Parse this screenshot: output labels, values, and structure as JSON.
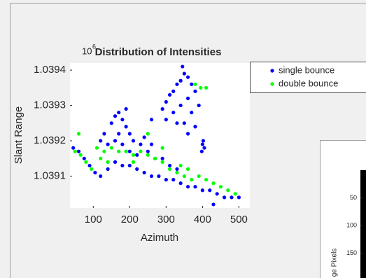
{
  "chart_data": [
    {
      "type": "scatter",
      "title": "Distribution of Intensities",
      "xlabel": "Azimuth",
      "ylabel": "Slant Range",
      "y_multiplier": {
        "base": "10",
        "power": "6"
      },
      "xlim": [
        36,
        530
      ],
      "ylim": [
        1.03901,
        1.03942
      ],
      "xticks": [
        100,
        200,
        300,
        400,
        500
      ],
      "yticks": [
        1.0391,
        1.0392,
        1.0393,
        1.0394
      ],
      "legend": "outside-right",
      "series": [
        {
          "name": "single bounce",
          "color": "#0000ff",
          "x": [
            45,
            60,
            75,
            90,
            105,
            120,
            140,
            160,
            180,
            200,
            220,
            240,
            260,
            280,
            300,
            320,
            340,
            360,
            380,
            400,
            420,
            440,
            460,
            480,
            500,
            430,
            150,
            160,
            170,
            180,
            170,
            190,
            200,
            210,
            180,
            160,
            140,
            230,
            250,
            220,
            200,
            270,
            290,
            240,
            260,
            310,
            330,
            130,
            190,
            120,
            290,
            300,
            310,
            320,
            330,
            340,
            350,
            345,
            360,
            370,
            380,
            320,
            340,
            360,
            370,
            350,
            360,
            380,
            300,
            330,
            390,
            260,
            400,
            405,
            398,
            402
          ],
          "y": [
            1.03918,
            1.03917,
            1.03915,
            1.03913,
            1.03911,
            1.0391,
            1.03912,
            1.03914,
            1.03913,
            1.03913,
            1.03912,
            1.03911,
            1.0391,
            1.0391,
            1.03909,
            1.03909,
            1.03908,
            1.03907,
            1.03907,
            1.03906,
            1.03906,
            1.03905,
            1.03904,
            1.03904,
            1.03904,
            1.03902,
            1.03925,
            1.03927,
            1.03928,
            1.03926,
            1.03922,
            1.03924,
            1.03922,
            1.0392,
            1.03919,
            1.0392,
            1.03919,
            1.03919,
            1.03917,
            1.03916,
            1.03917,
            1.03915,
            1.03915,
            1.03921,
            1.03919,
            1.03913,
            1.03912,
            1.03922,
            1.03929,
            1.0392,
            1.03929,
            1.03931,
            1.03933,
            1.03934,
            1.03936,
            1.03937,
            1.03939,
            1.03941,
            1.03938,
            1.03936,
            1.03934,
            1.03928,
            1.0393,
            1.03932,
            1.03928,
            1.03925,
            1.03922,
            1.03924,
            1.03926,
            1.03925,
            1.0393,
            1.03926,
            1.03919,
            1.03918,
            1.03917,
            1.0392
          ]
        },
        {
          "name": "double bounce",
          "color": "#00ff00",
          "x": [
            50,
            65,
            80,
            95,
            60,
            110,
            130,
            150,
            170,
            190,
            210,
            230,
            250,
            270,
            120,
            140,
            210,
            290,
            310,
            330,
            350,
            370,
            390,
            410,
            430,
            450,
            470,
            490,
            380,
            395,
            410,
            340,
            360,
            250,
            290
          ],
          "y": [
            1.03917,
            1.03916,
            1.03914,
            1.03912,
            1.03922,
            1.03918,
            1.03917,
            1.03918,
            1.03917,
            1.03917,
            1.03916,
            1.03917,
            1.03916,
            1.03915,
            1.03915,
            1.03914,
            1.03914,
            1.03914,
            1.03912,
            1.03911,
            1.0391,
            1.03909,
            1.0391,
            1.03909,
            1.03908,
            1.03907,
            1.03906,
            1.03905,
            1.03936,
            1.03935,
            1.03935,
            1.03913,
            1.03912,
            1.03922,
            1.03918
          ]
        }
      ]
    },
    {
      "type": "image",
      "ylabel": "ge Pixels",
      "ylim": [
        0,
        195
      ],
      "yticks": [
        50,
        100,
        150
      ]
    }
  ]
}
